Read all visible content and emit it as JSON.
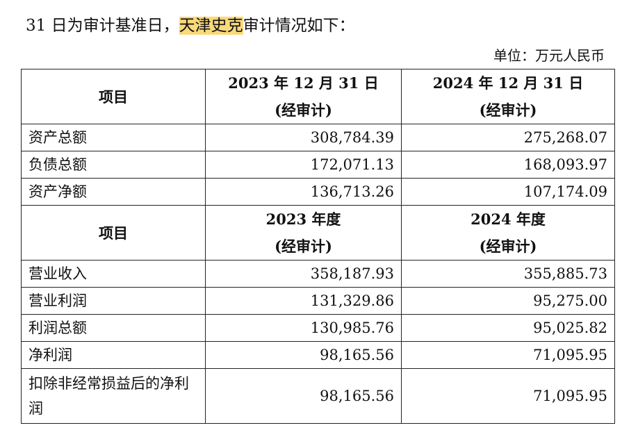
{
  "intro": {
    "before": "31 日为审计基准日，",
    "highlight": "天津史克",
    "after": "审计情况如下："
  },
  "unit": "单位：万元人民币",
  "balance_header": {
    "item": "项目",
    "col1_line1": "2023 年 12 月 31 日",
    "col1_line2": "(经审计)",
    "col2_line1": "2024 年 12 月 31 日",
    "col2_line2": "(经审计)"
  },
  "balance_rows": [
    {
      "label": "资产总额",
      "v2023": "308,784.39",
      "v2024": "275,268.07"
    },
    {
      "label": "负债总额",
      "v2023": "172,071.13",
      "v2024": "168,093.97"
    },
    {
      "label": "资产净额",
      "v2023": "136,713.26",
      "v2024": "107,174.09"
    }
  ],
  "income_header": {
    "item": "项目",
    "col1_line1": "2023 年度",
    "col1_line2": "(经审计)",
    "col2_line1": "2024 年度",
    "col2_line2": "(经审计)"
  },
  "income_rows": [
    {
      "label": "营业收入",
      "v2023": "358,187.93",
      "v2024": "355,885.73"
    },
    {
      "label": "营业利润",
      "v2023": "131,329.86",
      "v2024": "95,275.00"
    },
    {
      "label": "利润总额",
      "v2023": "130,985.76",
      "v2024": "95,025.82"
    },
    {
      "label": "净利润",
      "v2023": "98,165.56",
      "v2024": "71,095.95"
    },
    {
      "label": "扣除非经常损益后的净利润",
      "v2023": "98,165.56",
      "v2024": "71,095.95"
    }
  ]
}
